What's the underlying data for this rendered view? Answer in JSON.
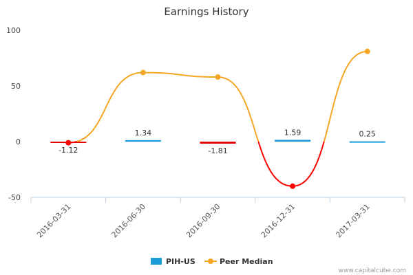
{
  "chart_data": {
    "type": "bar",
    "title": "Earnings History",
    "categories": [
      "2016-03-31",
      "2016-06-30",
      "2016-09-30",
      "2016-12-31",
      "2017-03-31"
    ],
    "ylim": [
      -50,
      100
    ],
    "yticks": [
      -50,
      0,
      50,
      100
    ],
    "series": [
      {
        "name": "PIH-US",
        "kind": "bar",
        "values": [
          -1.12,
          1.34,
          -1.81,
          1.59,
          0.25
        ],
        "labels": [
          "-1.12",
          "1.34",
          "-1.81",
          "1.59",
          "0.25"
        ],
        "positive_color": "#1a9ad6",
        "negative_color": "#e00000"
      },
      {
        "name": "Peer Median",
        "kind": "line",
        "values": [
          -1,
          62,
          58,
          -40,
          81
        ],
        "color": "#f5a623",
        "negative_color": "#ff0000"
      }
    ],
    "legend": "bottom-center"
  },
  "colors": {
    "axis": "#c0d0e0",
    "text": "#333333"
  },
  "credit": "www.capitalcube.com"
}
